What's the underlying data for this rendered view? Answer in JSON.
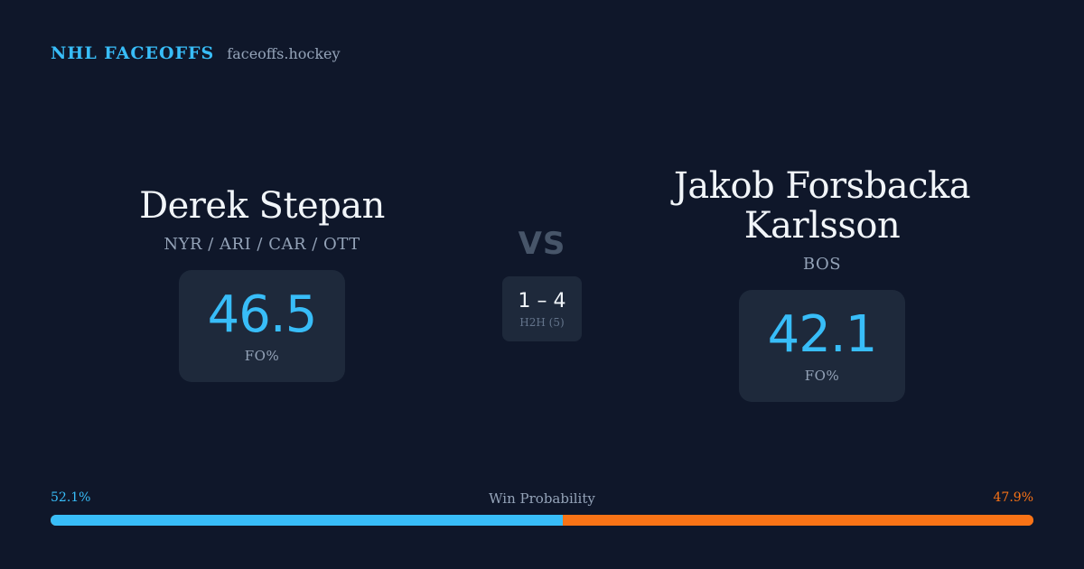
{
  "brand": {
    "title": "NHL FACEOFFS",
    "url": "faceoffs.hockey"
  },
  "colors": {
    "accent_blue": "#38bdf8",
    "accent_orange": "#f97316",
    "background": "#0f172a",
    "card": "#1e293b"
  },
  "player_left": {
    "name": "Derek Stepan",
    "teams": "NYR / ARI / CAR / OTT",
    "fo_value": "46.5",
    "fo_label": "FO%"
  },
  "player_right": {
    "name": "Jakob Forsbacka Karlsson",
    "teams": "BOS",
    "fo_value": "42.1",
    "fo_label": "FO%"
  },
  "matchup": {
    "vs": "VS",
    "h2h_score": "1 – 4",
    "h2h_label": "H2H (5)"
  },
  "win_probability": {
    "title": "Win Probability",
    "left_label": "52.1%",
    "right_label": "47.9%",
    "left_value": 52.1,
    "right_value": 47.9
  }
}
